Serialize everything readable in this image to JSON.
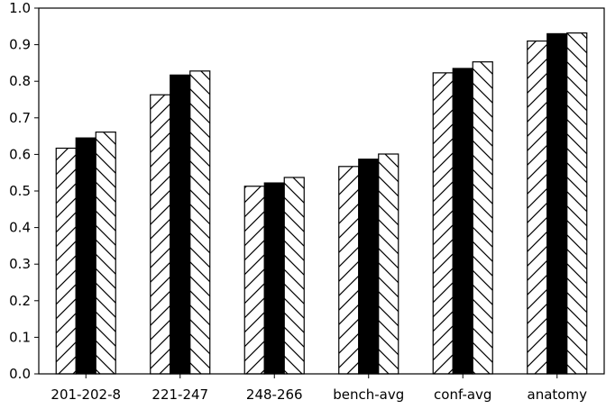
{
  "chart_data": {
    "type": "bar",
    "title": "",
    "xlabel": "",
    "ylabel": "",
    "categories": [
      "201-202-8",
      "221-247",
      "248-266",
      "bench-avg",
      "conf-avg",
      "anatomy"
    ],
    "series": [
      {
        "values": [
          0.617,
          0.763,
          0.513,
          0.567,
          0.823,
          0.91
        ],
        "fill": "#ffffff",
        "hatch": "forward-diagonal"
      },
      {
        "values": [
          0.645,
          0.817,
          0.522,
          0.587,
          0.835,
          0.93
        ],
        "fill": "#000000",
        "hatch": "none"
      },
      {
        "values": [
          0.661,
          0.828,
          0.537,
          0.601,
          0.853,
          0.932
        ],
        "fill": "#ffffff",
        "hatch": "back-diagonal"
      }
    ],
    "ylim": [
      0.0,
      1.0
    ],
    "yticks": [
      "0.0",
      "0.1",
      "0.2",
      "0.3",
      "0.4",
      "0.5",
      "0.6",
      "0.7",
      "0.8",
      "0.9",
      "1.0"
    ],
    "grid": false,
    "legend": "none",
    "colors": {
      "axis": "#000000",
      "edge": "#000000",
      "background": "#ffffff"
    }
  }
}
